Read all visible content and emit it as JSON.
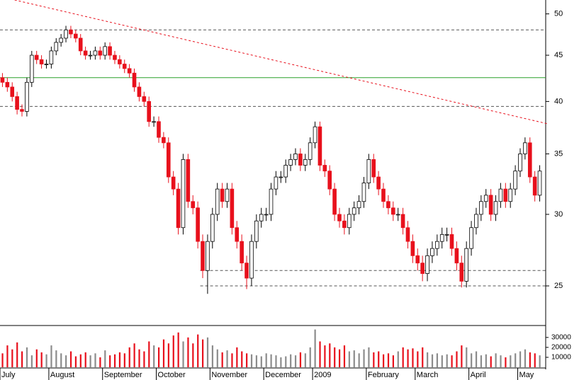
{
  "chart_data": {
    "type": "candlestick",
    "categories": [
      "July",
      null,
      null,
      null,
      null,
      null,
      null,
      null,
      null,
      null,
      "August",
      null,
      null,
      null,
      null,
      null,
      null,
      null,
      null,
      null,
      null,
      "September",
      null,
      null,
      null,
      null,
      null,
      null,
      null,
      null,
      null,
      null,
      "October",
      null,
      null,
      null,
      null,
      null,
      null,
      null,
      null,
      null,
      null,
      "November",
      null,
      null,
      null,
      null,
      null,
      null,
      null,
      null,
      null,
      null,
      "December",
      null,
      null,
      null,
      null,
      null,
      null,
      null,
      null,
      null,
      "2009",
      null,
      null,
      null,
      null,
      null,
      null,
      null,
      null,
      null,
      null,
      "February",
      null,
      null,
      null,
      null,
      null,
      null,
      null,
      null,
      null,
      "March",
      null,
      null,
      null,
      null,
      null,
      null,
      null,
      null,
      null,
      null,
      "April",
      null,
      null,
      null,
      null,
      null,
      null,
      null,
      null,
      null,
      "May",
      null,
      null,
      null,
      null
    ],
    "open": [
      42.5,
      42,
      41.5,
      40.5,
      39.2,
      39,
      42,
      45,
      44.5,
      44,
      44,
      45.5,
      46.5,
      47,
      48,
      47.5,
      47,
      45.5,
      45,
      45,
      45.5,
      45,
      46,
      45,
      44.5,
      44,
      43.5,
      43,
      41.5,
      40.5,
      40,
      38,
      38,
      36.5,
      36,
      33,
      32,
      29,
      34.5,
      31,
      30.5,
      28,
      26,
      28,
      30,
      32,
      31,
      32,
      29,
      28,
      26.5,
      25.5,
      28,
      29.5,
      30,
      30,
      32,
      33,
      33,
      34,
      34.5,
      35,
      34,
      34.5,
      36,
      37.5,
      34,
      33.5,
      32,
      30,
      29.5,
      29,
      30,
      30.5,
      31,
      32.5,
      34.5,
      33,
      32,
      31,
      30.5,
      30,
      30,
      29,
      28,
      27,
      26.5,
      25.8,
      27,
      27.5,
      28,
      28.5,
      28.5,
      27.5,
      26.5,
      25.3,
      27.5,
      29,
      30,
      31,
      31.5,
      30,
      31,
      32,
      31,
      32,
      33.5,
      35,
      36,
      33,
      31.5
    ],
    "high": [
      43,
      42.5,
      42,
      41,
      39.7,
      42.5,
      45.5,
      45.5,
      45,
      44.5,
      46,
      47,
      47.5,
      48.5,
      48.5,
      48,
      47.5,
      46,
      45.5,
      46,
      46,
      46.5,
      46.5,
      45.5,
      45,
      44.5,
      44,
      43.5,
      42,
      41,
      40.5,
      38.5,
      38.5,
      37,
      36.5,
      33.5,
      32.5,
      35,
      35,
      31.5,
      31,
      28.5,
      28.5,
      30.5,
      32.5,
      32.5,
      32.5,
      32.5,
      29.5,
      28.5,
      27,
      28.5,
      30,
      30.5,
      30.5,
      32.5,
      33.5,
      33.5,
      34.5,
      35,
      35.5,
      35.5,
      35,
      36.5,
      38,
      38,
      34.5,
      34,
      32.5,
      30.5,
      30,
      30.5,
      31,
      31.5,
      33,
      35,
      35,
      33.5,
      32.5,
      31.5,
      31,
      30.5,
      30.5,
      29.5,
      28.5,
      27.5,
      27,
      27.5,
      28,
      28.5,
      29,
      29,
      29,
      28,
      27,
      28,
      29.5,
      30.5,
      31.5,
      32,
      32,
      31.5,
      32.5,
      32.5,
      32.5,
      34,
      35.5,
      36.5,
      36.5,
      33.5,
      34
    ],
    "low": [
      41.5,
      41,
      40,
      38.7,
      38.5,
      38.5,
      41.5,
      44,
      43.5,
      43.5,
      43.5,
      45,
      46,
      46.5,
      47,
      46.5,
      45,
      44.5,
      44.5,
      44.5,
      44.5,
      44.5,
      44.5,
      44,
      43.5,
      43,
      42.5,
      41,
      40,
      39.5,
      37.5,
      37.5,
      36,
      35.5,
      32.5,
      31.5,
      28.5,
      28.5,
      30.5,
      30,
      27.5,
      25.5,
      24.5,
      27.5,
      29.5,
      30.5,
      30.5,
      28.5,
      27.5,
      26,
      24.8,
      25,
      27.5,
      29,
      29.5,
      29.5,
      31.5,
      32.5,
      32.5,
      33.5,
      34,
      33.5,
      33.5,
      34,
      35.5,
      33.5,
      33,
      31.5,
      29.5,
      29,
      28.5,
      28.5,
      29.5,
      30,
      30.5,
      32,
      32.5,
      31.5,
      30.5,
      30,
      29.5,
      29.5,
      28.5,
      27.5,
      26.5,
      26,
      25.3,
      25.3,
      26.5,
      27,
      27.5,
      28,
      27,
      26,
      24.9,
      24.9,
      27,
      28.5,
      29.5,
      30.5,
      29.5,
      29.5,
      30.5,
      30.5,
      30.5,
      31.5,
      33,
      34.5,
      32.5,
      31,
      31
    ],
    "close": [
      42,
      41.5,
      40.5,
      39.2,
      39,
      42,
      45,
      44.5,
      44,
      44,
      45.5,
      46.5,
      47,
      48,
      47.5,
      47,
      45.5,
      45,
      45,
      45.5,
      45,
      46,
      45,
      44.5,
      44,
      43.5,
      43,
      41.5,
      40.5,
      40,
      38,
      38,
      36.5,
      36,
      33,
      32,
      29,
      34.5,
      31,
      30.5,
      28,
      26,
      28,
      30,
      32,
      31,
      32,
      29,
      28,
      26.5,
      25.5,
      28,
      29.5,
      30,
      30,
      32,
      33,
      33,
      34,
      34.5,
      35,
      34,
      34.5,
      36,
      37.5,
      34,
      33.5,
      32,
      30,
      29.5,
      29,
      30,
      30.5,
      31,
      32.5,
      34.5,
      33,
      32,
      31,
      30.5,
      30,
      30,
      29,
      28,
      27,
      26.5,
      25.8,
      27,
      27.5,
      28,
      28.5,
      28.5,
      27.5,
      26.5,
      25.3,
      27.5,
      29,
      30,
      31,
      31.5,
      30,
      31,
      32,
      31,
      32,
      33.5,
      35,
      36,
      33,
      31.5,
      33.5
    ],
    "volume": [
      14000,
      22000,
      18000,
      25000,
      16000,
      20000,
      12000,
      18000,
      15000,
      13000,
      22000,
      17000,
      14000,
      12000,
      16000,
      11000,
      13000,
      15000,
      12000,
      14000,
      10000,
      17000,
      12000,
      13000,
      15000,
      14000,
      20000,
      24000,
      18000,
      16000,
      26000,
      22000,
      20000,
      28000,
      24000,
      32000,
      35000,
      26000,
      30000,
      24000,
      33000,
      28000,
      30000,
      22000,
      18000,
      15000,
      17000,
      14000,
      20000,
      16000,
      14000,
      13000,
      12000,
      11000,
      14000,
      13000,
      12000,
      10000,
      11000,
      13000,
      12000,
      15000,
      14000,
      20000,
      38000,
      26000,
      22000,
      24000,
      20000,
      18000,
      22000,
      16000,
      17000,
      14000,
      18000,
      20000,
      15000,
      16000,
      13000,
      14000,
      12000,
      16000,
      20000,
      18000,
      19000,
      16000,
      20000,
      15000,
      13000,
      14000,
      12000,
      13000,
      12000,
      16000,
      22000,
      20000,
      14000,
      16000,
      12000,
      13000,
      11000,
      14000,
      12000,
      10000,
      12000,
      14000,
      16000,
      18000,
      15000,
      14000,
      12000
    ],
    "up_color": "#ffffff",
    "down_color": "#e8101c",
    "outline_color": "#000000",
    "volume_up_color": "#8c8c8c",
    "ylim": [
      22.6,
      51.8
    ],
    "log_scale": true,
    "yticks": [
      25,
      30,
      35,
      40,
      45,
      50
    ],
    "y2lim": [
      0,
      42000
    ],
    "y2ticks": [
      10000,
      20000,
      30000
    ],
    "reference_lines": [
      {
        "value": 48,
        "style": "dashed",
        "color": "#555555"
      },
      {
        "value": 39.5,
        "style": "dashed",
        "color": "#555555"
      },
      {
        "value": 26,
        "style": "dashed",
        "color": "#555555",
        "from": 41
      },
      {
        "value": 25,
        "style": "dashed",
        "color": "#555555",
        "from": 41
      },
      {
        "value": 42.5,
        "style": "solid",
        "color": "#2ca02c"
      }
    ],
    "trendline": {
      "x": [
        3,
        112
      ],
      "values": [
        51.8,
        37.8
      ],
      "color": "#e8101c"
    }
  }
}
